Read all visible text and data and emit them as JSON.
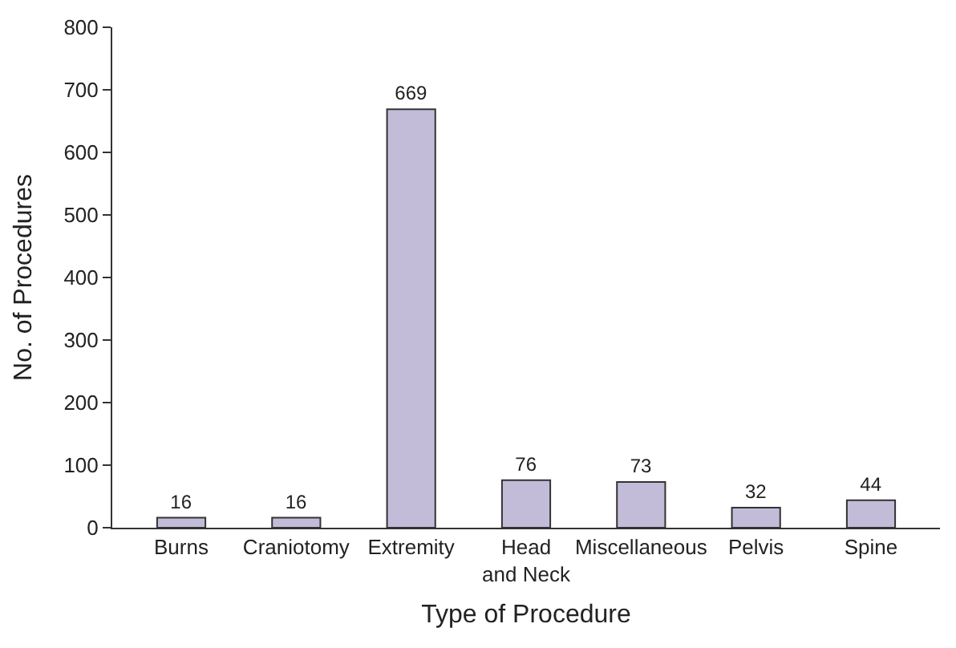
{
  "chart_data": {
    "type": "bar",
    "xlabel": "Type of Procedure",
    "ylabel": "No. of Procedures",
    "categories": [
      "Burns",
      "Craniotomy",
      "Extremity",
      "Head and Neck",
      "Miscellaneous",
      "Pelvis",
      "Spine"
    ],
    "values": [
      16,
      16,
      669,
      76,
      73,
      32,
      44
    ],
    "color": "#c3bcd9",
    "data_labels": true,
    "legend": false,
    "ylim": [
      0,
      800
    ],
    "yticks": [
      0,
      100,
      200,
      300,
      400,
      500,
      600,
      700,
      800
    ]
  }
}
